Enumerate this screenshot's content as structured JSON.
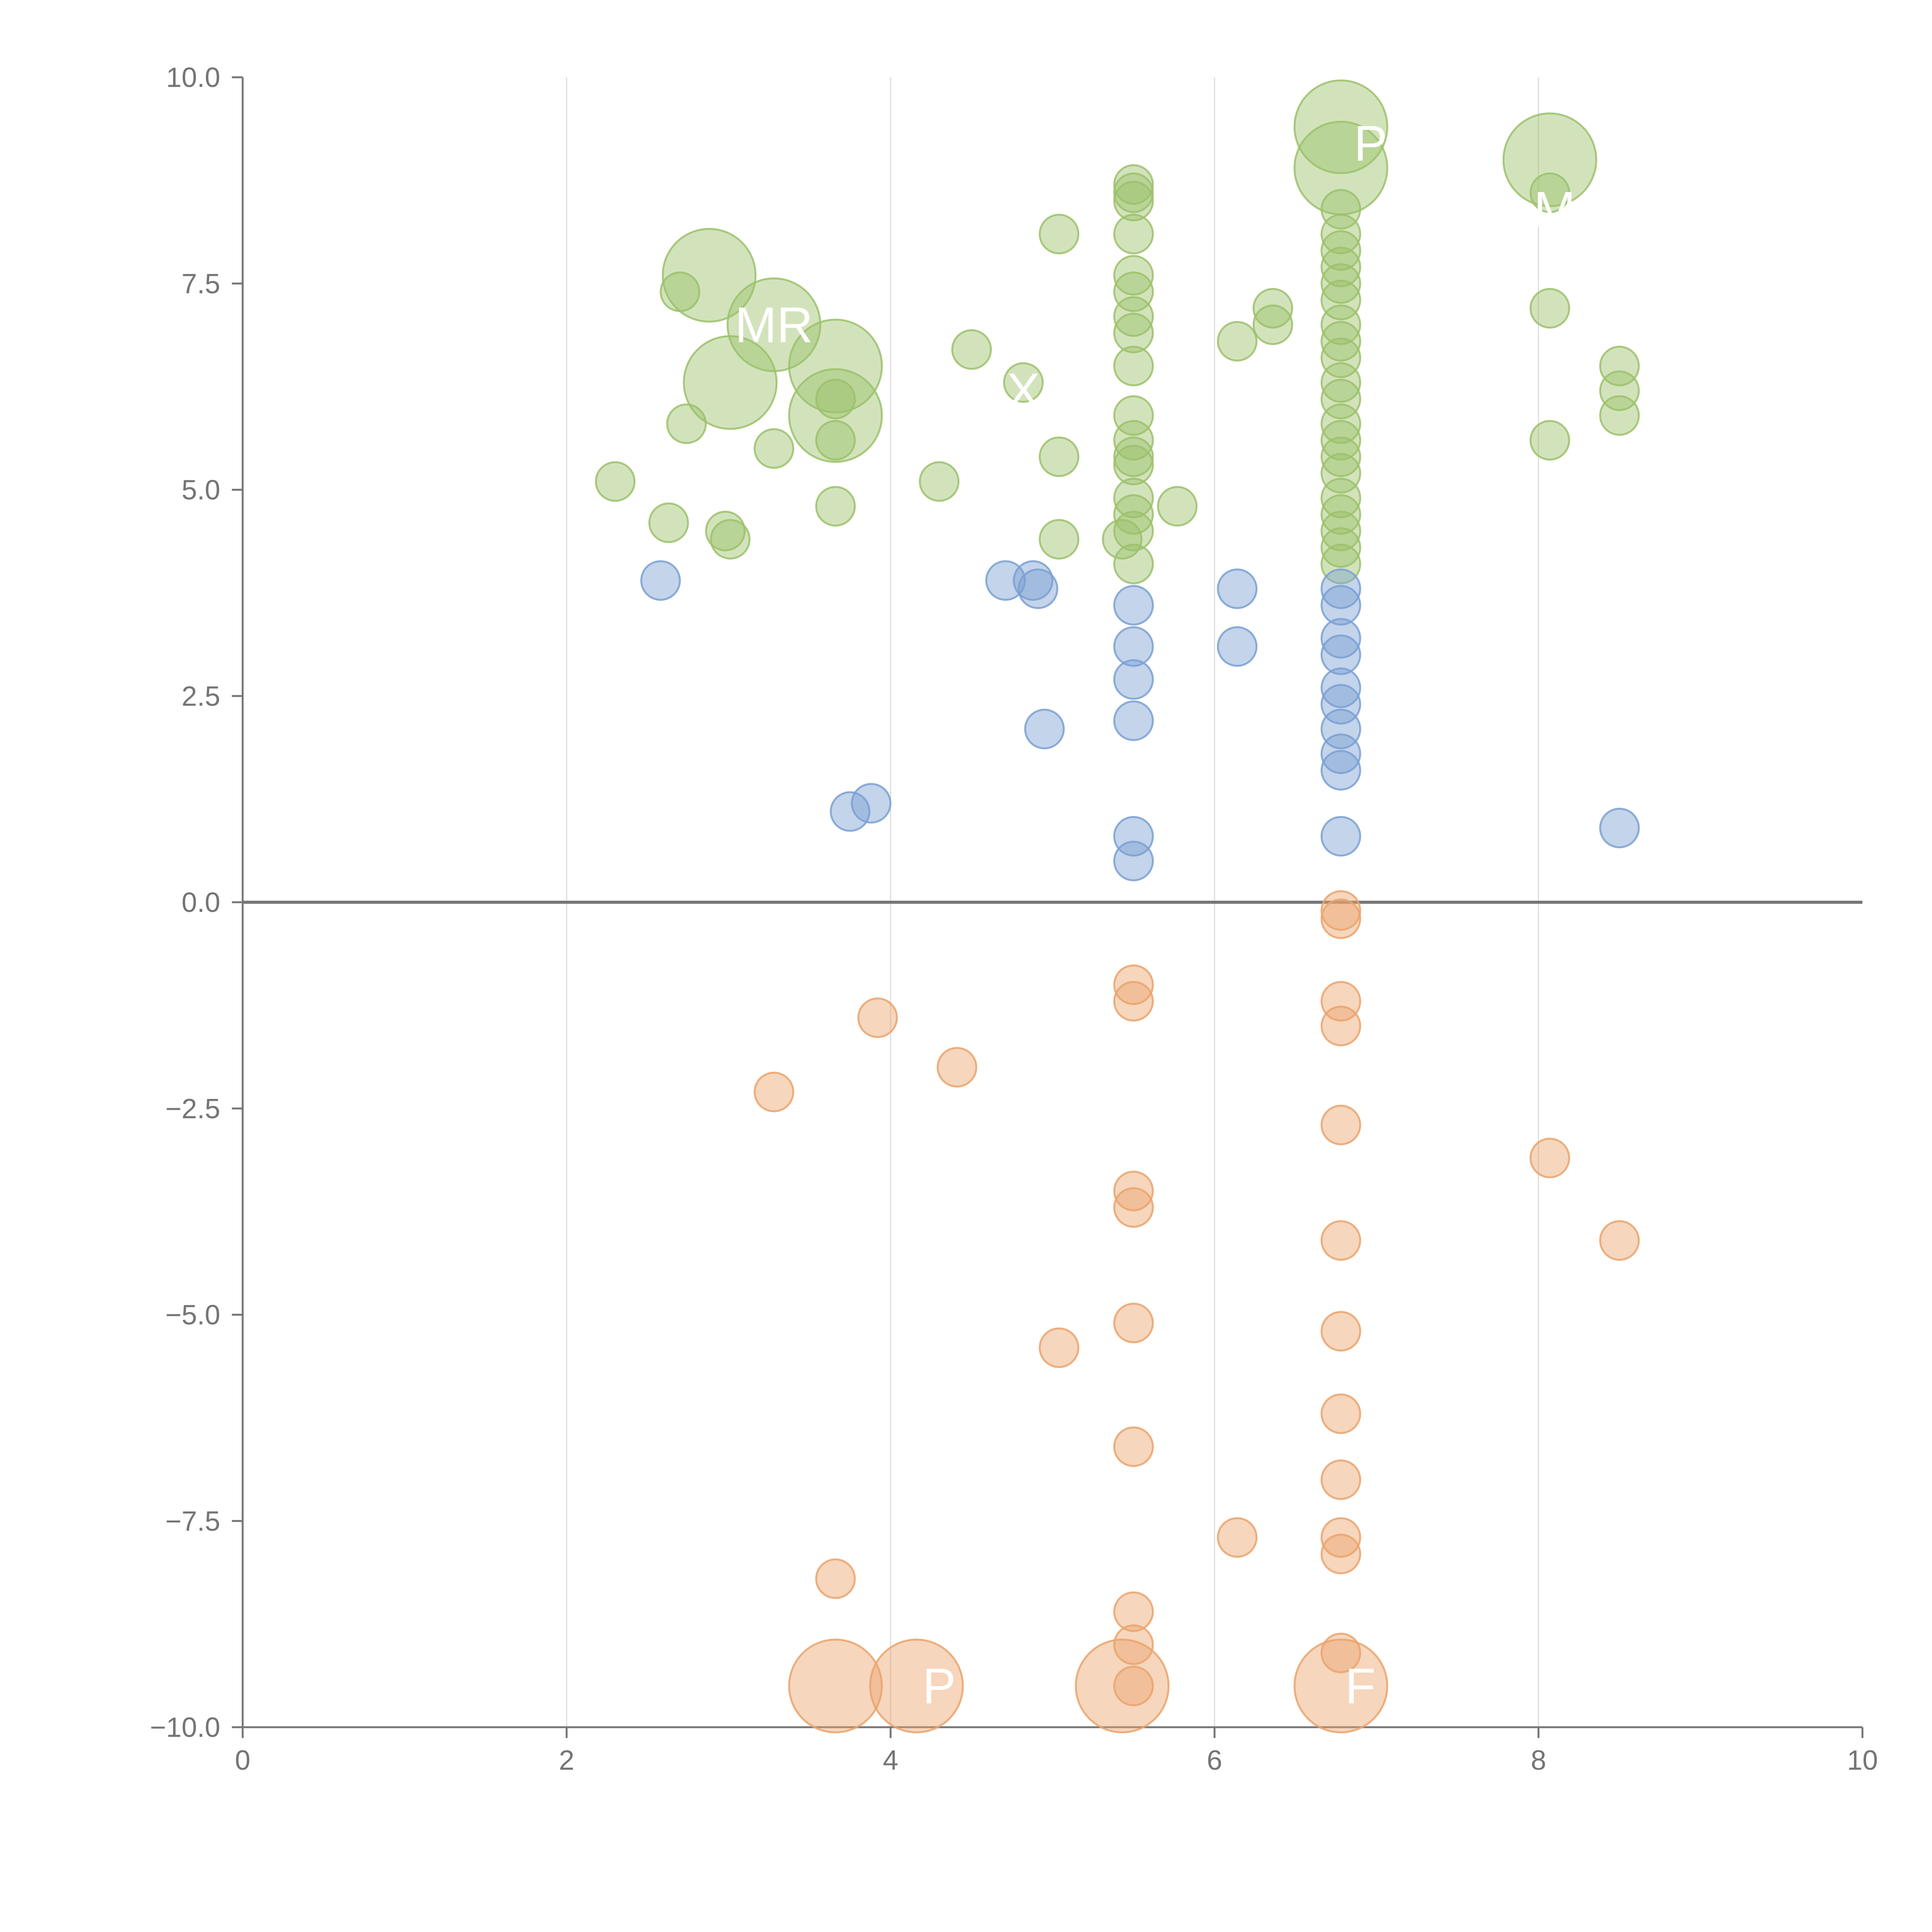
{
  "chart_data": {
    "type": "scatter",
    "title": "",
    "xlabel": "",
    "ylabel": "",
    "xlim": [
      0,
      10
    ],
    "ylim": [
      -10,
      10
    ],
    "x_ticks": [
      "0",
      "2",
      "4",
      "6",
      "8",
      "10"
    ],
    "y_ticks": [
      "10.0",
      "7.5",
      "5.0",
      "2.5",
      "0.0",
      "−2.5",
      "−5.0",
      "−7.5",
      "−10.0"
    ],
    "grid": "vertical lines",
    "series": [
      {
        "name": "green",
        "color": "#9cc16b",
        "points": [
          [
            2.3,
            5.1,
            1
          ],
          [
            2.63,
            4.6,
            1
          ],
          [
            2.7,
            7.4,
            1
          ],
          [
            2.74,
            5.8,
            1
          ],
          [
            2.98,
            4.5,
            1
          ],
          [
            3.01,
            4.4,
            1
          ],
          [
            3.28,
            5.5,
            1
          ],
          [
            3.66,
            4.8,
            1
          ],
          [
            3.66,
            5.6,
            1
          ],
          [
            3.66,
            6.1,
            1
          ],
          [
            4.3,
            5.1,
            1
          ],
          [
            4.5,
            6.7,
            1
          ],
          [
            4.82,
            6.3,
            1
          ],
          [
            5.04,
            8.1,
            1
          ],
          [
            5.04,
            5.4,
            1
          ],
          [
            5.04,
            4.4,
            1
          ],
          [
            5.43,
            4.4,
            1
          ],
          [
            5.5,
            8.7,
            1
          ],
          [
            5.5,
            8.6,
            1
          ],
          [
            5.5,
            8.5,
            1
          ],
          [
            5.5,
            8.1,
            1
          ],
          [
            5.5,
            7.6,
            1
          ],
          [
            5.5,
            7.4,
            1
          ],
          [
            5.5,
            7.1,
            1
          ],
          [
            5.5,
            6.9,
            1
          ],
          [
            5.5,
            6.5,
            1
          ],
          [
            5.5,
            5.9,
            1
          ],
          [
            5.5,
            5.6,
            1
          ],
          [
            5.5,
            5.4,
            1
          ],
          [
            5.5,
            5.3,
            1
          ],
          [
            5.5,
            4.9,
            1
          ],
          [
            5.5,
            4.7,
            1
          ],
          [
            5.5,
            4.5,
            1
          ],
          [
            5.5,
            4.1,
            1
          ],
          [
            5.77,
            4.8,
            1
          ],
          [
            6.14,
            6.8,
            1
          ],
          [
            6.36,
            7.2,
            1
          ],
          [
            6.36,
            7.0,
            1
          ],
          [
            6.78,
            8.4,
            1
          ],
          [
            6.78,
            8.1,
            1
          ],
          [
            6.78,
            7.9,
            1
          ],
          [
            6.78,
            7.7,
            1
          ],
          [
            6.78,
            7.5,
            1
          ],
          [
            6.78,
            7.3,
            1
          ],
          [
            6.78,
            7.0,
            1
          ],
          [
            6.78,
            6.8,
            1
          ],
          [
            6.78,
            6.6,
            1
          ],
          [
            6.78,
            6.3,
            1
          ],
          [
            6.78,
            6.1,
            1
          ],
          [
            6.78,
            5.8,
            1
          ],
          [
            6.78,
            5.6,
            1
          ],
          [
            6.78,
            5.4,
            1
          ],
          [
            6.78,
            5.2,
            1
          ],
          [
            6.78,
            4.9,
            1
          ],
          [
            6.78,
            4.7,
            1
          ],
          [
            6.78,
            4.5,
            1
          ],
          [
            6.78,
            4.3,
            1
          ],
          [
            6.78,
            4.1,
            1
          ],
          [
            8.07,
            8.6,
            1
          ],
          [
            8.07,
            7.2,
            1
          ],
          [
            8.07,
            5.6,
            1
          ],
          [
            8.5,
            6.5,
            1
          ],
          [
            8.5,
            6.2,
            1
          ],
          [
            8.5,
            5.9,
            1
          ],
          [
            2.88,
            7.6,
            2.4
          ],
          [
            3.01,
            6.3,
            2.4
          ],
          [
            3.28,
            7.0,
            2.4
          ],
          [
            3.66,
            6.5,
            2.4
          ],
          [
            3.66,
            5.9,
            2.4
          ],
          [
            6.78,
            9.4,
            2.4
          ],
          [
            6.78,
            8.9,
            2.4
          ],
          [
            8.07,
            9.0,
            2.4
          ]
        ]
      },
      {
        "name": "blue",
        "color": "#7aa0d2",
        "points": [
          [
            2.58,
            3.9,
            1
          ],
          [
            3.75,
            1.1,
            1
          ],
          [
            3.88,
            1.2,
            1
          ],
          [
            4.71,
            3.9,
            1
          ],
          [
            4.88,
            3.9,
            1
          ],
          [
            4.91,
            3.8,
            1
          ],
          [
            4.95,
            2.1,
            1
          ],
          [
            5.5,
            3.6,
            1
          ],
          [
            5.5,
            3.1,
            1
          ],
          [
            5.5,
            2.7,
            1
          ],
          [
            5.5,
            2.2,
            1
          ],
          [
            5.5,
            0.8,
            1
          ],
          [
            5.5,
            0.5,
            1
          ],
          [
            6.14,
            3.8,
            1
          ],
          [
            6.14,
            3.1,
            1
          ],
          [
            6.78,
            3.8,
            1
          ],
          [
            6.78,
            3.6,
            1
          ],
          [
            6.78,
            3.2,
            1
          ],
          [
            6.78,
            3.0,
            1
          ],
          [
            6.78,
            2.6,
            1
          ],
          [
            6.78,
            2.4,
            1
          ],
          [
            6.78,
            2.1,
            1
          ],
          [
            6.78,
            1.8,
            1
          ],
          [
            6.78,
            1.6,
            1
          ],
          [
            6.78,
            0.8,
            1
          ],
          [
            8.5,
            0.9,
            1
          ]
        ]
      },
      {
        "name": "orange",
        "color": "#eaa36c",
        "points": [
          [
            3.28,
            -2.3,
            1
          ],
          [
            3.66,
            -8.2,
            1
          ],
          [
            3.92,
            -1.4,
            1
          ],
          [
            4.41,
            -2.0,
            1
          ],
          [
            5.04,
            -5.4,
            1
          ],
          [
            5.5,
            -1.0,
            1
          ],
          [
            5.5,
            -1.2,
            1
          ],
          [
            5.5,
            -3.5,
            1
          ],
          [
            5.5,
            -3.7,
            1
          ],
          [
            5.5,
            -5.1,
            1
          ],
          [
            5.5,
            -6.6,
            1
          ],
          [
            5.5,
            -8.6,
            1
          ],
          [
            5.5,
            -9.0,
            1
          ],
          [
            5.5,
            -9.5,
            1
          ],
          [
            6.14,
            -7.7,
            1
          ],
          [
            6.78,
            -0.1,
            1
          ],
          [
            6.78,
            -0.2,
            1
          ],
          [
            6.78,
            -1.2,
            1
          ],
          [
            6.78,
            -1.5,
            1
          ],
          [
            6.78,
            -2.7,
            1
          ],
          [
            6.78,
            -4.1,
            1
          ],
          [
            6.78,
            -5.2,
            1
          ],
          [
            6.78,
            -6.2,
            1
          ],
          [
            6.78,
            -7.0,
            1
          ],
          [
            6.78,
            -7.7,
            1
          ],
          [
            6.78,
            -7.9,
            1
          ],
          [
            6.78,
            -9.1,
            1
          ],
          [
            8.07,
            -3.1,
            1
          ],
          [
            8.5,
            -4.1,
            1
          ],
          [
            3.66,
            -9.5,
            2.4
          ],
          [
            4.16,
            -9.5,
            2.4
          ],
          [
            5.43,
            -9.5,
            2.4
          ],
          [
            6.78,
            -9.5,
            2.4
          ]
        ]
      }
    ],
    "annotations": [
      {
        "text": "PL",
        "x": 7.05,
        "y": 9.2
      },
      {
        "text": "MR",
        "x": 3.28,
        "y": 7.0
      },
      {
        "text": "X",
        "x": 4.82,
        "y": 6.2
      },
      {
        "text": "M",
        "x": 8.1,
        "y": 8.4
      },
      {
        "text": "P",
        "x": 4.3,
        "y": -9.5
      },
      {
        "text": "F",
        "x": 6.9,
        "y": -9.5
      }
    ]
  }
}
